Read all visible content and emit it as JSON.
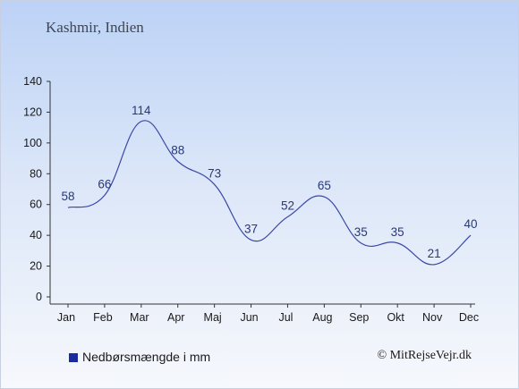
{
  "source": "© MitRejseVejr.dk",
  "colors": {
    "line": "#3a48a8",
    "legend_swatch": "#1a2ba0",
    "axis": "#333333",
    "data_label": "#283878"
  },
  "chart_data": {
    "type": "line",
    "title": "Kashmir, Indien",
    "categories": [
      "Jan",
      "Feb",
      "Mar",
      "Apr",
      "Maj",
      "Jun",
      "Jul",
      "Aug",
      "Sep",
      "Okt",
      "Nov",
      "Dec"
    ],
    "series": [
      {
        "name": "Nedbørsmængde i mm",
        "values": [
          58,
          66,
          114,
          88,
          73,
          37,
          52,
          65,
          35,
          35,
          21,
          40
        ]
      }
    ],
    "ylim": [
      0,
      140
    ],
    "yticks": [
      0,
      20,
      40,
      60,
      80,
      100,
      120,
      140
    ],
    "grid": false,
    "legend_position": "bottom-left"
  }
}
